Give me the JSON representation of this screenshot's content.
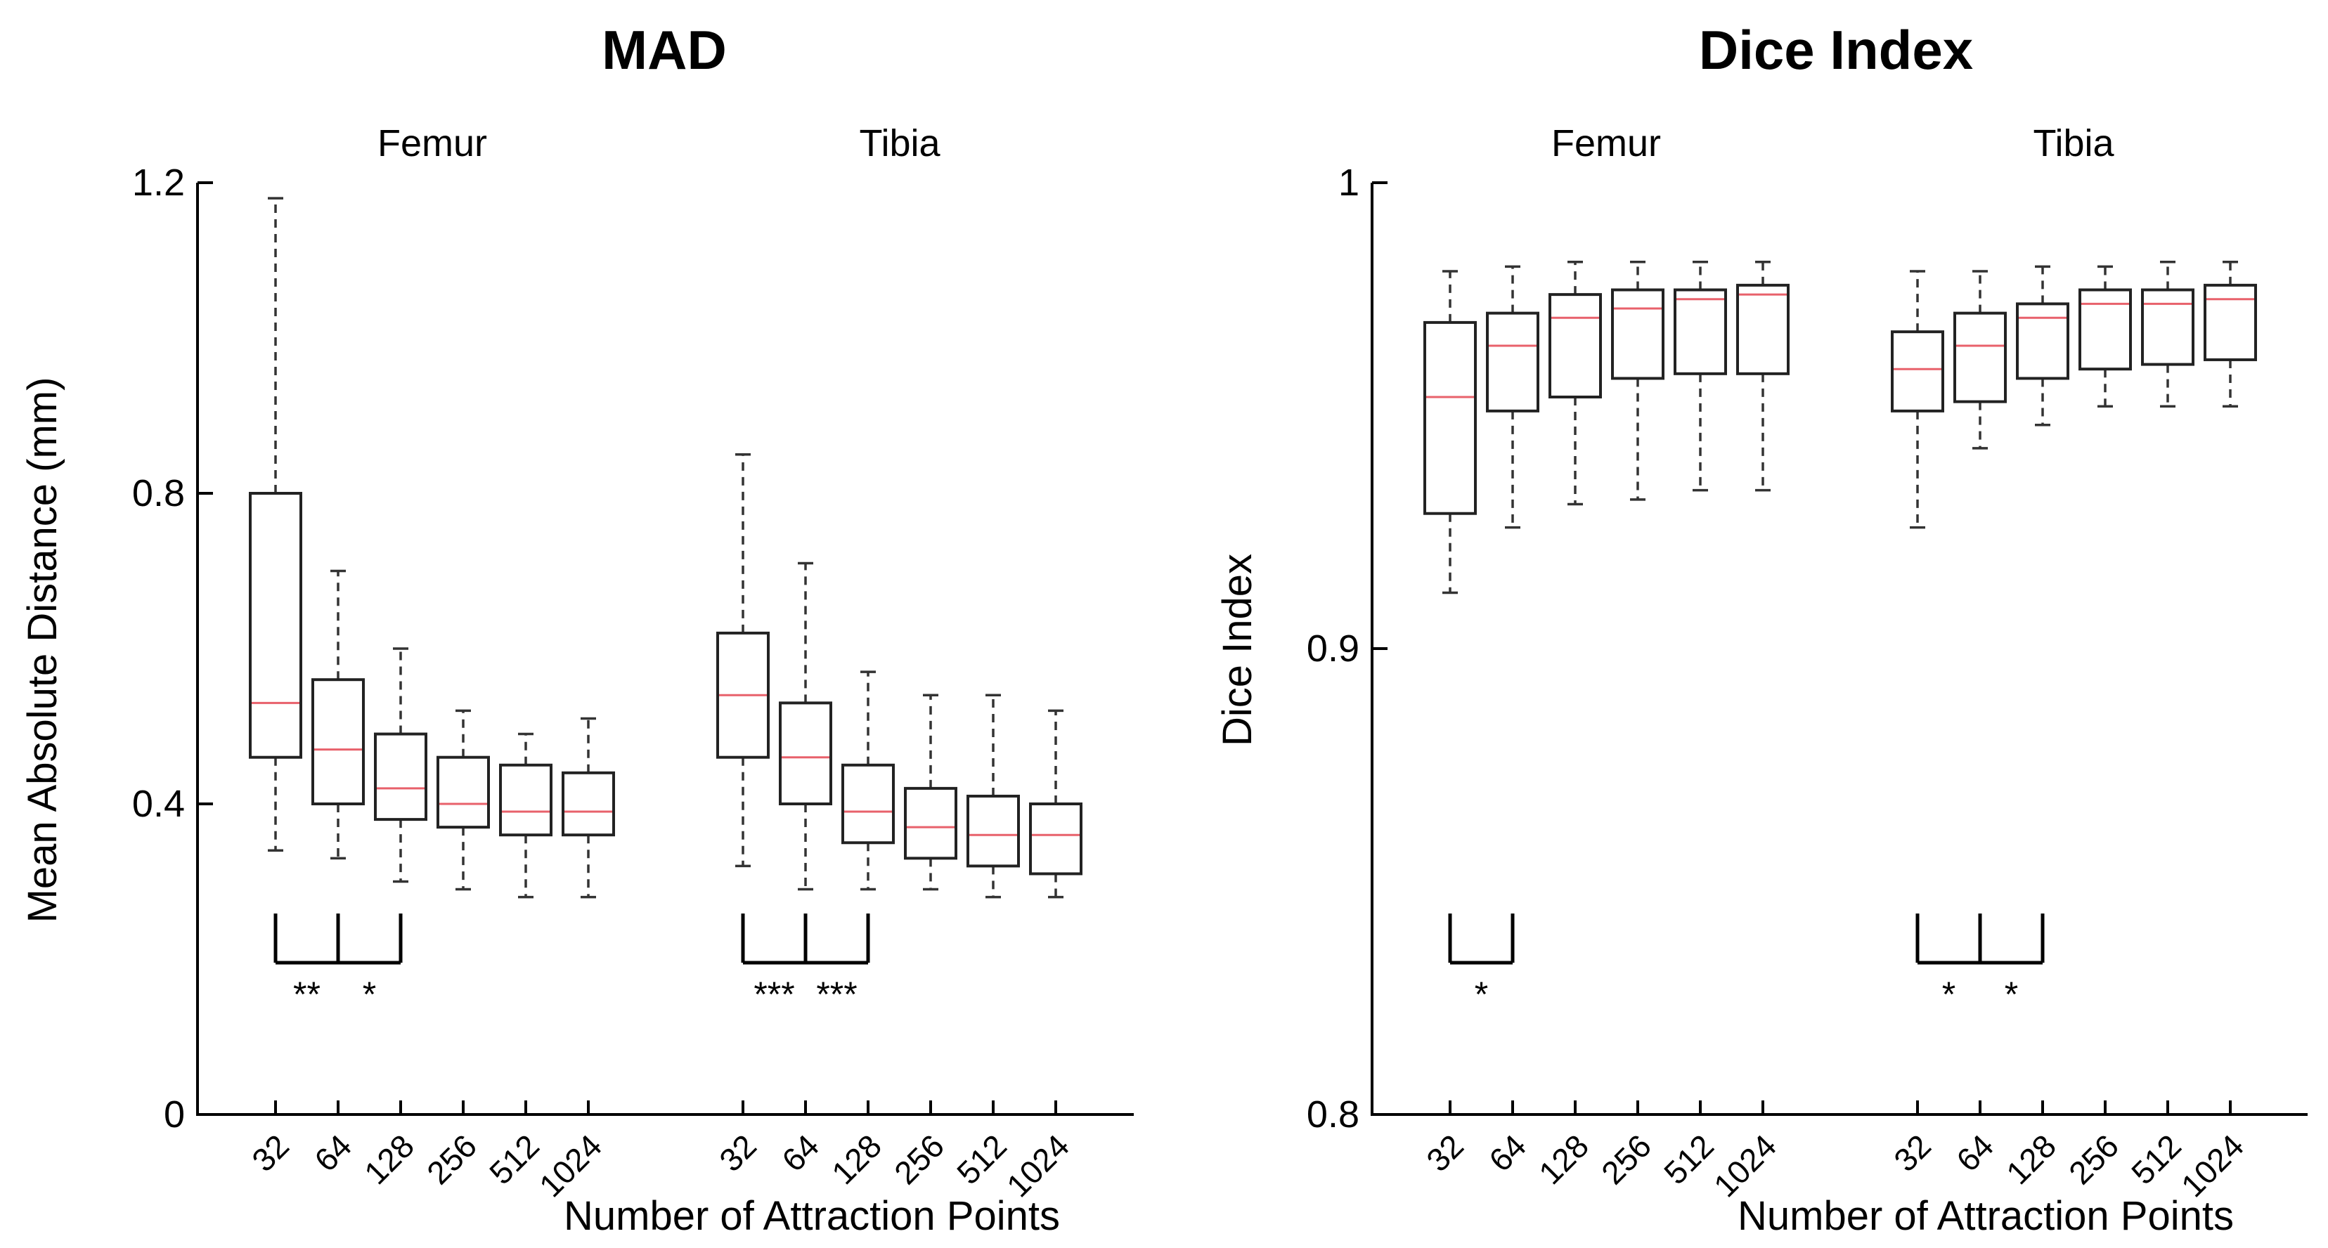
{
  "chart_data": [
    {
      "type": "box",
      "title": "MAD",
      "ylabel": "Mean Absolute Distance (mm)",
      "xlabel": "Number of Attraction Points",
      "ylim": [
        0,
        1.2
      ],
      "yticks": [
        0,
        0.4,
        0.8,
        1.2
      ],
      "ytick_labels": [
        "0",
        "0.4",
        "0.8",
        "1.2"
      ],
      "categories": [
        "32",
        "64",
        "128",
        "256",
        "512",
        "1024"
      ],
      "groups": [
        {
          "name": "Femur",
          "boxes": [
            {
              "category": "32",
              "whislo": 0.34,
              "q1": 0.46,
              "med": 0.53,
              "q3": 0.8,
              "whishi": 1.18
            },
            {
              "category": "64",
              "whislo": 0.33,
              "q1": 0.4,
              "med": 0.47,
              "q3": 0.56,
              "whishi": 0.7
            },
            {
              "category": "128",
              "whislo": 0.3,
              "q1": 0.38,
              "med": 0.42,
              "q3": 0.49,
              "whishi": 0.6
            },
            {
              "category": "256",
              "whislo": 0.29,
              "q1": 0.37,
              "med": 0.4,
              "q3": 0.46,
              "whishi": 0.52
            },
            {
              "category": "512",
              "whislo": 0.28,
              "q1": 0.36,
              "med": 0.39,
              "q3": 0.45,
              "whishi": 0.49
            },
            {
              "category": "1024",
              "whislo": 0.28,
              "q1": 0.36,
              "med": 0.39,
              "q3": 0.44,
              "whishi": 0.51
            }
          ],
          "significance": [
            {
              "from": "32",
              "to": "64",
              "label": "**"
            },
            {
              "from": "64",
              "to": "128",
              "label": "*"
            }
          ]
        },
        {
          "name": "Tibia",
          "boxes": [
            {
              "category": "32",
              "whislo": 0.32,
              "q1": 0.46,
              "med": 0.54,
              "q3": 0.62,
              "whishi": 0.85
            },
            {
              "category": "64",
              "whislo": 0.29,
              "q1": 0.4,
              "med": 0.46,
              "q3": 0.53,
              "whishi": 0.71
            },
            {
              "category": "128",
              "whislo": 0.29,
              "q1": 0.35,
              "med": 0.39,
              "q3": 0.45,
              "whishi": 0.57
            },
            {
              "category": "256",
              "whislo": 0.29,
              "q1": 0.33,
              "med": 0.37,
              "q3": 0.42,
              "whishi": 0.54
            },
            {
              "category": "512",
              "whislo": 0.28,
              "q1": 0.32,
              "med": 0.36,
              "q3": 0.41,
              "whishi": 0.54
            },
            {
              "category": "1024",
              "whislo": 0.28,
              "q1": 0.31,
              "med": 0.36,
              "q3": 0.4,
              "whishi": 0.52
            }
          ],
          "significance": [
            {
              "from": "32",
              "to": "64",
              "label": "***"
            },
            {
              "from": "64",
              "to": "128",
              "label": "***"
            }
          ]
        }
      ]
    },
    {
      "type": "box",
      "title": "Dice Index",
      "ylabel": "Dice Index",
      "xlabel": "Number of Attraction Points",
      "ylim": [
        0.8,
        1.0
      ],
      "yticks": [
        0.8,
        0.9,
        1.0
      ],
      "ytick_labels": [
        "0.8",
        "0.9",
        "1"
      ],
      "categories": [
        "32",
        "64",
        "128",
        "256",
        "512",
        "1024"
      ],
      "groups": [
        {
          "name": "Femur",
          "boxes": [
            {
              "category": "32",
              "whislo": 0.912,
              "q1": 0.929,
              "med": 0.954,
              "q3": 0.97,
              "whishi": 0.981
            },
            {
              "category": "64",
              "whislo": 0.926,
              "q1": 0.951,
              "med": 0.965,
              "q3": 0.972,
              "whishi": 0.982
            },
            {
              "category": "128",
              "whislo": 0.931,
              "q1": 0.954,
              "med": 0.971,
              "q3": 0.976,
              "whishi": 0.983
            },
            {
              "category": "256",
              "whislo": 0.932,
              "q1": 0.958,
              "med": 0.973,
              "q3": 0.977,
              "whishi": 0.983
            },
            {
              "category": "512",
              "whislo": 0.934,
              "q1": 0.959,
              "med": 0.975,
              "q3": 0.977,
              "whishi": 0.983
            },
            {
              "category": "1024",
              "whislo": 0.934,
              "q1": 0.959,
              "med": 0.976,
              "q3": 0.978,
              "whishi": 0.983
            }
          ],
          "significance": [
            {
              "from": "32",
              "to": "64",
              "label": "*"
            }
          ]
        },
        {
          "name": "Tibia",
          "boxes": [
            {
              "category": "32",
              "whislo": 0.926,
              "q1": 0.951,
              "med": 0.96,
              "q3": 0.968,
              "whishi": 0.981
            },
            {
              "category": "64",
              "whislo": 0.943,
              "q1": 0.953,
              "med": 0.965,
              "q3": 0.972,
              "whishi": 0.981
            },
            {
              "category": "128",
              "whislo": 0.948,
              "q1": 0.958,
              "med": 0.971,
              "q3": 0.974,
              "whishi": 0.982
            },
            {
              "category": "256",
              "whislo": 0.952,
              "q1": 0.96,
              "med": 0.974,
              "q3": 0.977,
              "whishi": 0.982
            },
            {
              "category": "512",
              "whislo": 0.952,
              "q1": 0.961,
              "med": 0.974,
              "q3": 0.977,
              "whishi": 0.983
            },
            {
              "category": "1024",
              "whislo": 0.952,
              "q1": 0.962,
              "med": 0.975,
              "q3": 0.978,
              "whishi": 0.983
            }
          ],
          "significance": [
            {
              "from": "32",
              "to": "64",
              "label": "*"
            },
            {
              "from": "64",
              "to": "128",
              "label": "*"
            }
          ]
        }
      ]
    }
  ]
}
